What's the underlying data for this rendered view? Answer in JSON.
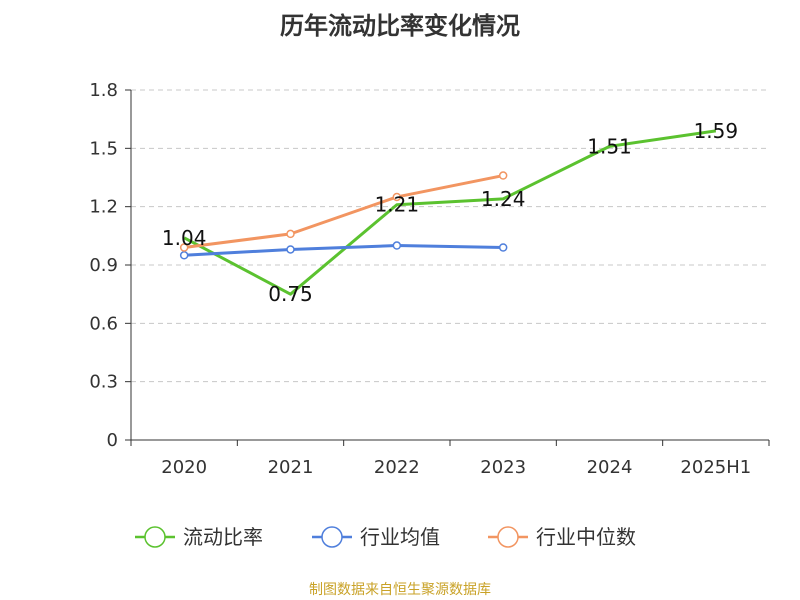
{
  "title": "历年流动比率变化情况",
  "footer": "制图数据来自恒生聚源数据库",
  "chart_data": {
    "type": "line",
    "categories": [
      "2020",
      "2021",
      "2022",
      "2023",
      "2024",
      "2025H1"
    ],
    "ylim": [
      0,
      1.8
    ],
    "yticks": [
      0,
      0.3,
      0.6,
      0.9,
      1.2,
      1.5,
      1.8
    ],
    "ytick_labels": [
      "0",
      "0.3",
      "0.6",
      "0.9",
      "1.2",
      "1.5",
      "1.8"
    ],
    "grid": true,
    "legend_position": "bottom",
    "series": [
      {
        "name": "流动比率",
        "color": "#5bc22f",
        "labels": true,
        "marker": false,
        "values": [
          1.04,
          0.75,
          1.21,
          1.24,
          1.51,
          1.59
        ],
        "label_texts": [
          "1.04",
          "0.75",
          "1.21",
          "1.24",
          "1.51",
          "1.59"
        ]
      },
      {
        "name": "行业均值",
        "color": "#4f7fdc",
        "labels": false,
        "marker": true,
        "values": [
          0.95,
          0.98,
          1.0,
          0.99,
          null,
          null
        ]
      },
      {
        "name": "行业中位数",
        "color": "#f29561",
        "labels": false,
        "marker": true,
        "values": [
          0.99,
          1.06,
          1.25,
          1.36,
          null,
          null
        ]
      }
    ]
  }
}
